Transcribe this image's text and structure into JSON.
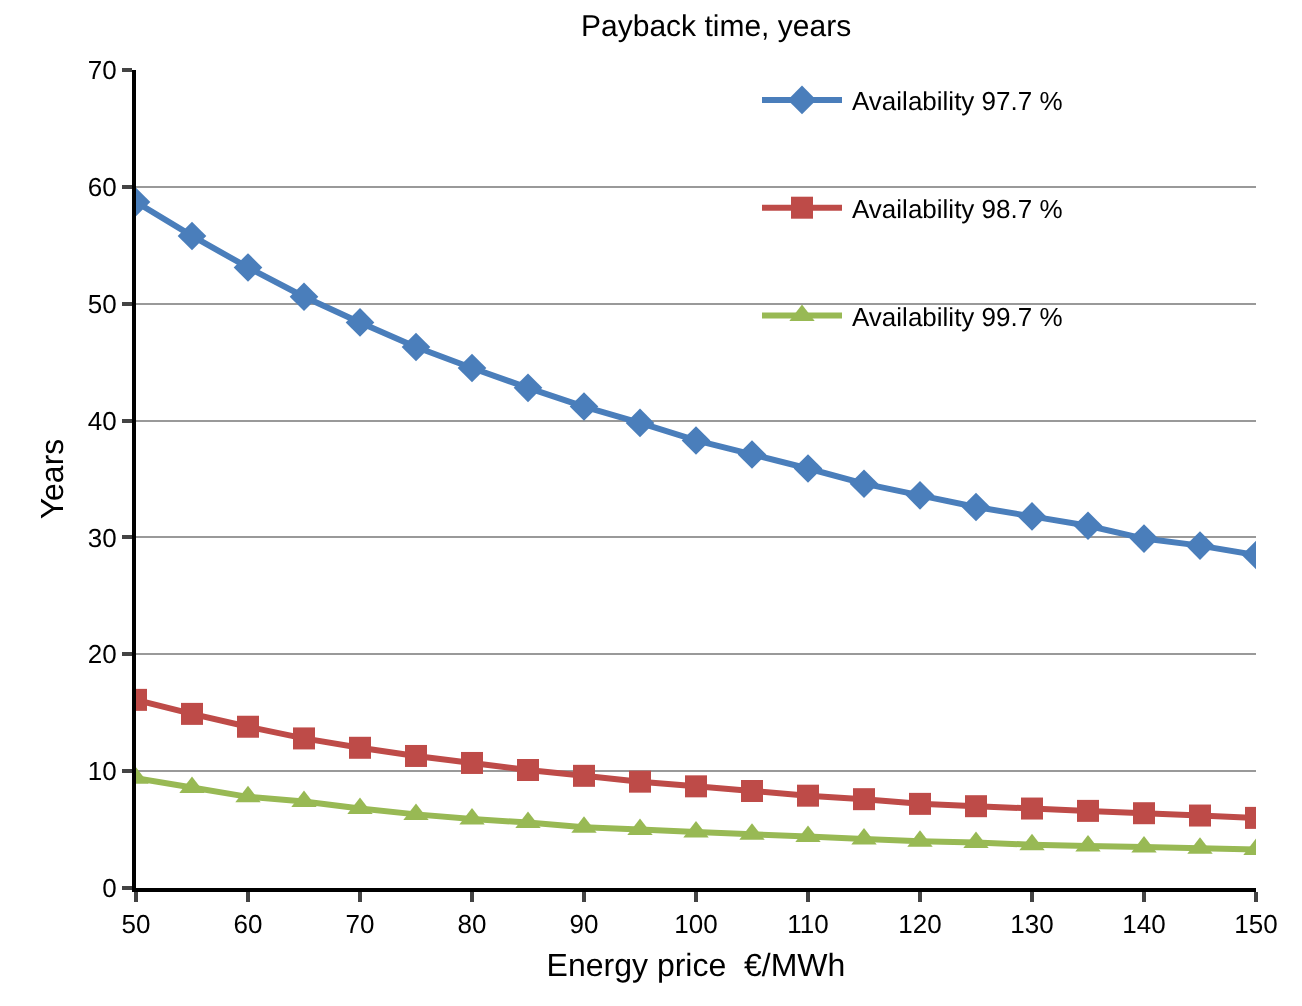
{
  "chart_data": {
    "type": "line",
    "title": "Payback time, years",
    "xlabel": "Energy price  €/MWh",
    "ylabel": "Years",
    "x": [
      50,
      55,
      60,
      65,
      70,
      75,
      80,
      85,
      90,
      95,
      100,
      105,
      110,
      115,
      120,
      125,
      130,
      135,
      140,
      145,
      150
    ],
    "series": [
      {
        "name": "Availability 97.7 %",
        "color": "#4a7ebb",
        "marker": "diamond",
        "values": [
          58.7,
          55.8,
          53.1,
          50.6,
          48.4,
          46.3,
          44.5,
          42.8,
          41.2,
          39.8,
          38.3,
          37.1,
          35.9,
          34.6,
          33.6,
          32.6,
          31.8,
          31.0,
          29.9,
          29.3,
          28.5
        ]
      },
      {
        "name": "Availability 98.7 %",
        "color": "#be4b48",
        "marker": "square",
        "values": [
          16.1,
          14.9,
          13.8,
          12.8,
          12.0,
          11.3,
          10.7,
          10.1,
          9.6,
          9.1,
          8.7,
          8.3,
          7.9,
          7.6,
          7.2,
          7.0,
          6.8,
          6.6,
          6.4,
          6.2,
          6.0
        ]
      },
      {
        "name": "Availability 99.7 %",
        "color": "#98b954",
        "marker": "triangle",
        "values": [
          9.4,
          8.6,
          7.8,
          7.4,
          6.8,
          6.3,
          5.9,
          5.6,
          5.2,
          5.0,
          4.8,
          4.6,
          4.4,
          4.2,
          4.0,
          3.9,
          3.7,
          3.6,
          3.5,
          3.4,
          3.3
        ]
      }
    ],
    "xlim": [
      50,
      150
    ],
    "xticks": [
      50,
      60,
      70,
      80,
      90,
      100,
      110,
      120,
      130,
      140,
      150
    ],
    "ylim": [
      0,
      70
    ],
    "yticks": [
      0,
      10,
      20,
      30,
      40,
      50,
      60,
      70
    ],
    "grid": "y",
    "legend": "top right",
    "line_style": "solid"
  }
}
